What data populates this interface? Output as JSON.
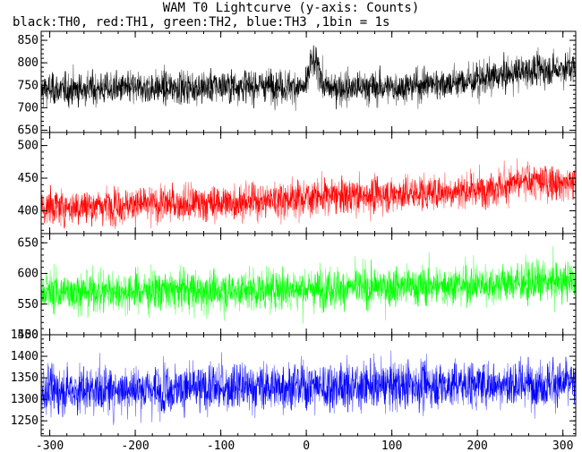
{
  "title": "WAM T0 Lightcurve (y-axis: Counts)",
  "subtitle": "black:TH0, red:TH1, green:TH2, blue:TH3 ,1bin = 1s",
  "chart_data": {
    "type": "line",
    "x_range": [
      -310,
      315
    ],
    "x_ticks": [
      -300,
      -200,
      -100,
      0,
      100,
      200,
      300
    ],
    "x_tick_labels": [
      "-300",
      "-200",
      "-100",
      "0",
      "100",
      "200",
      "300"
    ],
    "panels": [
      {
        "name": "TH0",
        "color": "#000000",
        "ylim": [
          645,
          870
        ],
        "y_ticks": [
          650,
          700,
          750,
          800,
          850
        ],
        "y_tick_labels": [
          "650",
          "700",
          "750",
          "800",
          "850"
        ],
        "trend": [
          [
            -310,
            740
          ],
          [
            -150,
            745
          ],
          [
            -50,
            750
          ],
          [
            0,
            745
          ],
          [
            5,
            800
          ],
          [
            15,
            790
          ],
          [
            20,
            745
          ],
          [
            100,
            745
          ],
          [
            200,
            760
          ],
          [
            250,
            780
          ],
          [
            315,
            790
          ]
        ],
        "noise_sd": 20
      },
      {
        "name": "TH1",
        "color": "#ff0000",
        "ylim": [
          365,
          520
        ],
        "y_ticks": [
          400,
          450,
          500
        ],
        "y_tick_labels": [
          "400",
          "450",
          "500"
        ],
        "trend": [
          [
            -310,
            405
          ],
          [
            -100,
            412
          ],
          [
            0,
            420
          ],
          [
            100,
            425
          ],
          [
            200,
            432
          ],
          [
            260,
            445
          ],
          [
            315,
            442
          ]
        ],
        "noise_sd": 15
      },
      {
        "name": "TH2",
        "color": "#00ff00",
        "ylim": [
          500,
          665
        ],
        "y_ticks": [
          500,
          550,
          600,
          650
        ],
        "y_tick_labels": [
          "500",
          "550",
          "600",
          "650"
        ],
        "trend": [
          [
            -310,
            570
          ],
          [
            -100,
            572
          ],
          [
            100,
            578
          ],
          [
            200,
            582
          ],
          [
            315,
            588
          ]
        ],
        "noise_sd": 18
      },
      {
        "name": "TH3",
        "color": "#0000ff",
        "ylim": [
          1215,
          1450
        ],
        "y_ticks": [
          1250,
          1300,
          1350,
          1400,
          1450
        ],
        "y_tick_labels": [
          "1250",
          "1300",
          "1350",
          "1400",
          "1450"
        ],
        "trend": [
          [
            -310,
            1320
          ],
          [
            0,
            1330
          ],
          [
            315,
            1338
          ]
        ],
        "noise_sd": 30
      }
    ]
  }
}
